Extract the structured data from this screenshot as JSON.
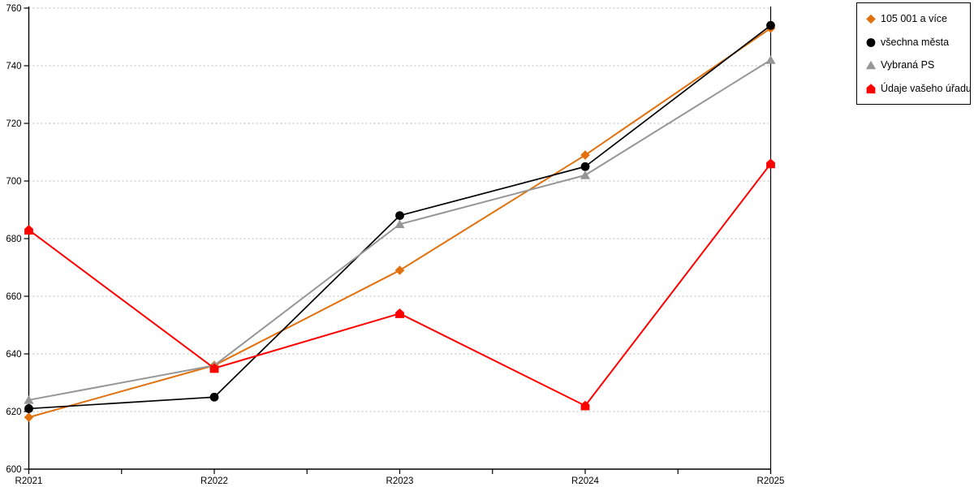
{
  "chart_data": {
    "type": "line",
    "title": "",
    "xlabel": "",
    "ylabel": "",
    "categories": [
      "R2021",
      "R2022",
      "R2023",
      "R2024",
      "R2025"
    ],
    "series": [
      {
        "name": "105 001 a více",
        "color": "#E2700D",
        "marker": "diamond",
        "values": [
          618,
          636,
          669,
          709,
          753
        ]
      },
      {
        "name": "všechna města",
        "color": "#000000",
        "marker": "circle",
        "values": [
          621,
          625,
          688,
          705,
          754
        ]
      },
      {
        "name": "Vybraná PS",
        "color": "#969696",
        "marker": "triangle",
        "values": [
          624,
          636,
          685,
          702,
          742
        ]
      },
      {
        "name": "Údaje vašeho úřadu",
        "color": "#FF0000",
        "marker": "pentagon",
        "values": [
          683,
          635,
          654,
          622,
          706
        ]
      }
    ],
    "ylim": [
      600,
      760
    ],
    "ytick_step": 20,
    "ytick_labels": [
      "600",
      "620",
      "640",
      "660",
      "680",
      "700",
      "720",
      "740",
      "760"
    ],
    "grid": "horizontal-dotted",
    "gridline_color": "#b8b8b8",
    "axis_color": "#000000",
    "legend_position": "top-right"
  }
}
